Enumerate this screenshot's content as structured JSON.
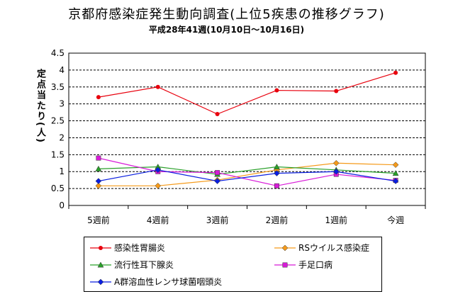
{
  "chart_data": {
    "type": "line",
    "title": "京都府感染症発生動向調査(上位5疾患の推移グラフ)",
    "subtitle": "平成28年41週(10月10日〜10月16日)",
    "ylabel": "定点当たり(人)",
    "ylim": [
      0,
      4.5
    ],
    "yticks": [
      "0",
      "0.5",
      "1",
      "1.5",
      "2",
      "2.5",
      "3",
      "3.5",
      "4",
      "4.5"
    ],
    "grid": "horizontal-dashed",
    "legend_position": "bottom",
    "categories": [
      "5週前",
      "4週前",
      "3週前",
      "2週前",
      "1週前",
      "今週"
    ],
    "series": [
      {
        "name": "感染性胃腸炎",
        "color": "#e8000d",
        "marker": "circle",
        "values": [
          3.2,
          3.5,
          2.7,
          3.4,
          3.38,
          3.92
        ]
      },
      {
        "name": "RSウイルス感染症",
        "color": "#f59a1a",
        "marker": "diamond",
        "values": [
          0.58,
          0.58,
          0.75,
          1.05,
          1.25,
          1.2
        ]
      },
      {
        "name": "流行性耳下腺炎",
        "color": "#2aa02a",
        "marker": "triangle",
        "values": [
          1.08,
          1.14,
          0.92,
          1.14,
          1.05,
          0.95
        ]
      },
      {
        "name": "手足口病",
        "color": "#d81bd8",
        "marker": "square",
        "values": [
          1.4,
          1.0,
          0.97,
          0.58,
          0.92,
          0.74
        ]
      },
      {
        "name": "A群溶血性レンサ球菌咽頭炎",
        "color": "#0a1ee0",
        "marker": "diamond",
        "values": [
          0.72,
          1.05,
          0.72,
          0.95,
          1.0,
          0.72
        ]
      }
    ]
  }
}
